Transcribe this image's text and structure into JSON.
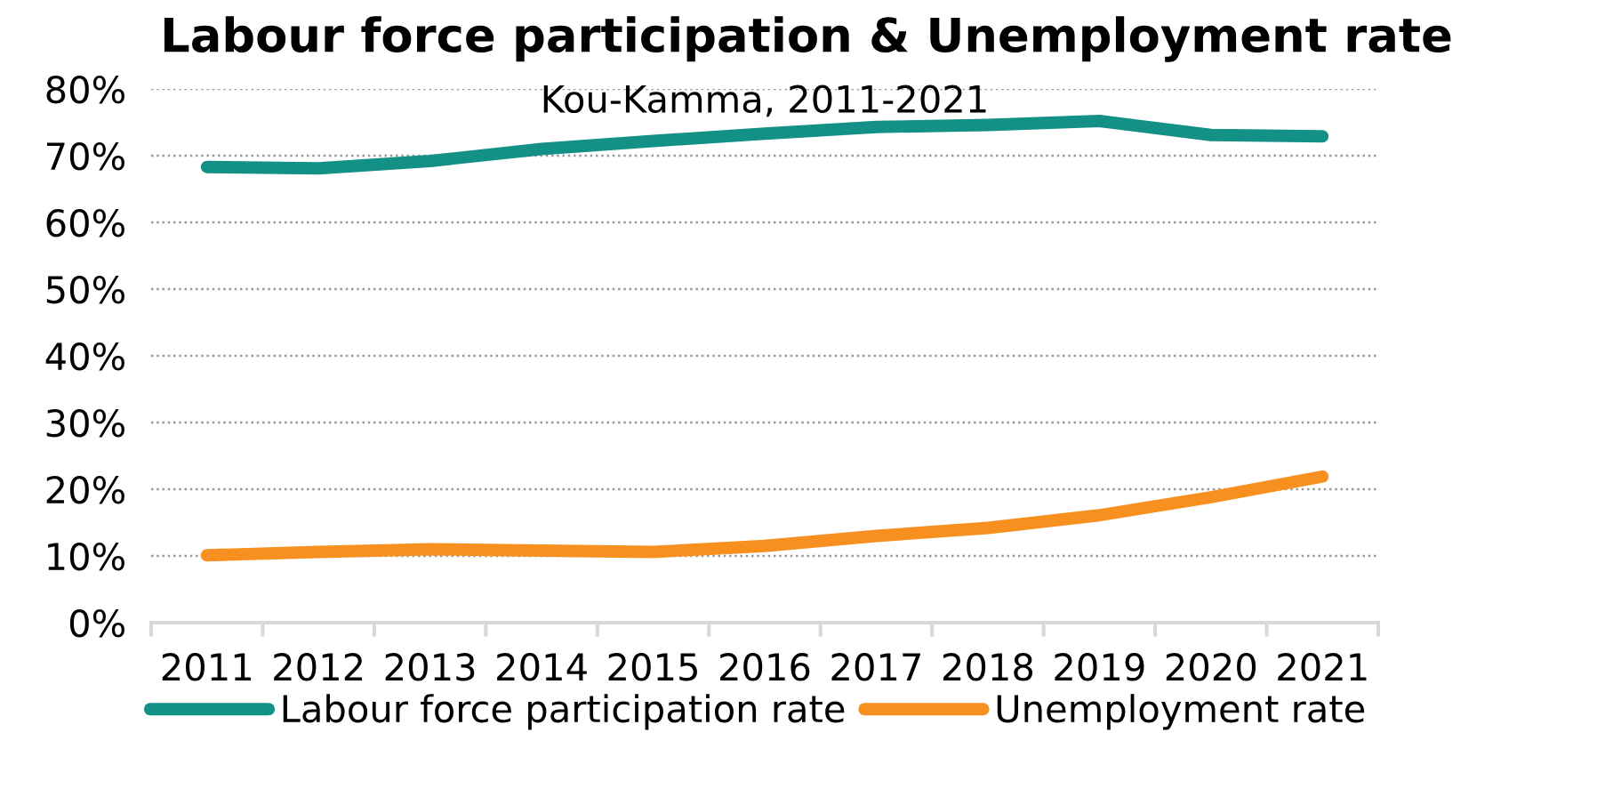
{
  "chart_data": {
    "type": "line",
    "title": "Labour force participation & Unemployment rate",
    "subtitle": "Kou-Kamma, 2011-2021",
    "categories": [
      "2011",
      "2012",
      "2013",
      "2014",
      "2015",
      "2016",
      "2017",
      "2018",
      "2019",
      "2020",
      "2021"
    ],
    "series": [
      {
        "name": "Labour force participation rate",
        "color": "#139187",
        "values": [
          68.3,
          68.1,
          69.2,
          71.0,
          72.2,
          73.3,
          74.3,
          74.6,
          75.2,
          73.1,
          72.9
        ]
      },
      {
        "name": "Unemployment rate",
        "color": "#f7901e",
        "values": [
          10.1,
          10.6,
          11.0,
          10.8,
          10.6,
          11.5,
          13.0,
          14.2,
          16.1,
          18.8,
          21.9
        ]
      }
    ],
    "ylim": [
      0,
      80
    ],
    "yticks": [
      {
        "value": 0,
        "label": "0%"
      },
      {
        "value": 10,
        "label": "10%"
      },
      {
        "value": 20,
        "label": "20%"
      },
      {
        "value": 30,
        "label": "30%"
      },
      {
        "value": 40,
        "label": "40%"
      },
      {
        "value": 50,
        "label": "50%"
      },
      {
        "value": 60,
        "label": "60%"
      },
      {
        "value": 70,
        "label": "70%"
      },
      {
        "value": 80,
        "label": "80%"
      }
    ],
    "grid": "y",
    "legend": "bottom",
    "marker": "none",
    "line_style": "solid"
  }
}
